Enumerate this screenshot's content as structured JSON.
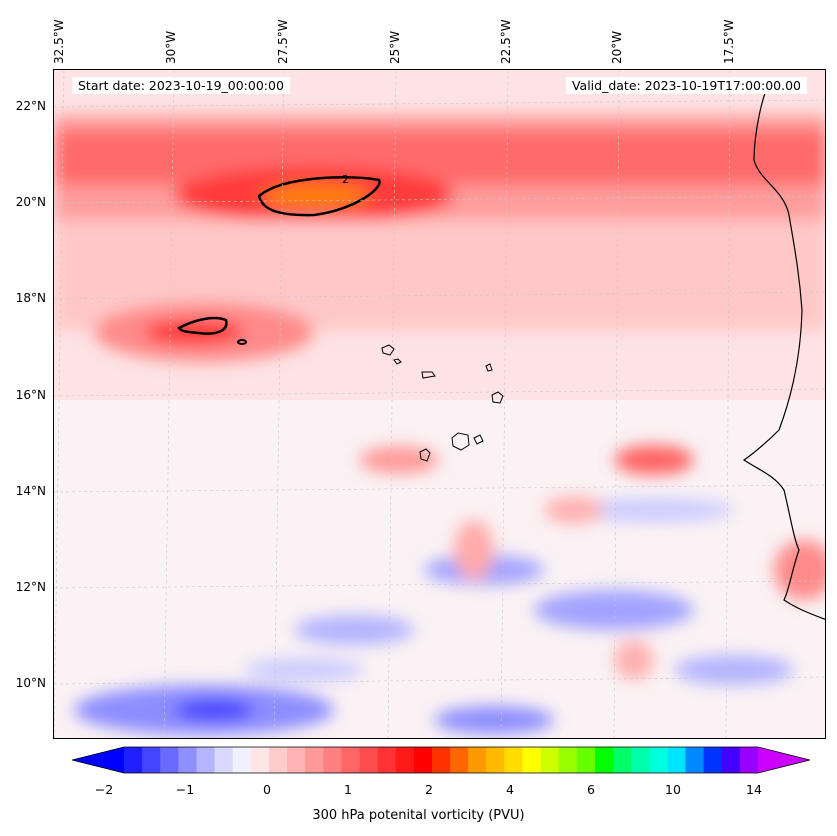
{
  "map": {
    "start_date": "Start date: 2023-10-19_00:00:00",
    "valid_date": "Valid_date: 2023-10-19T17:00:00.00",
    "variable": "300 hPa potenital vorticity (PVU)",
    "contour_label": "2",
    "lon_labels": [
      "32.5°W",
      "30°W",
      "27.5°W",
      "25°W",
      "22.5°W",
      "20°W",
      "17.5°W"
    ],
    "lat_labels": [
      "22°N",
      "20°N",
      "18°N",
      "16°N",
      "14°N",
      "12°N",
      "10°N"
    ],
    "colorbar": {
      "tick_labels": [
        "−2",
        "−1",
        "0",
        "1",
        "2",
        "4",
        "6",
        "10",
        "14"
      ],
      "colors": [
        "#0000ff",
        "#2020ff",
        "#4545ff",
        "#6a6aff",
        "#8f8fff",
        "#b4b4ff",
        "#d9d9ff",
        "#f0f0ff",
        "#ffe6e6",
        "#ffcccc",
        "#ffb3b3",
        "#ff9999",
        "#ff8080",
        "#ff6666",
        "#ff4d4d",
        "#ff3333",
        "#ff1a1a",
        "#ff0000",
        "#ff3300",
        "#ff6600",
        "#ff9900",
        "#ffbb00",
        "#ffdd00",
        "#ffff00",
        "#ccff00",
        "#99ff00",
        "#66ff00",
        "#00ff00",
        "#00ff66",
        "#00ffaa",
        "#00ffdd",
        "#00e5ff",
        "#0088ff",
        "#0033ff",
        "#4400ff",
        "#9900ff",
        "#cc00ff"
      ]
    }
  }
}
